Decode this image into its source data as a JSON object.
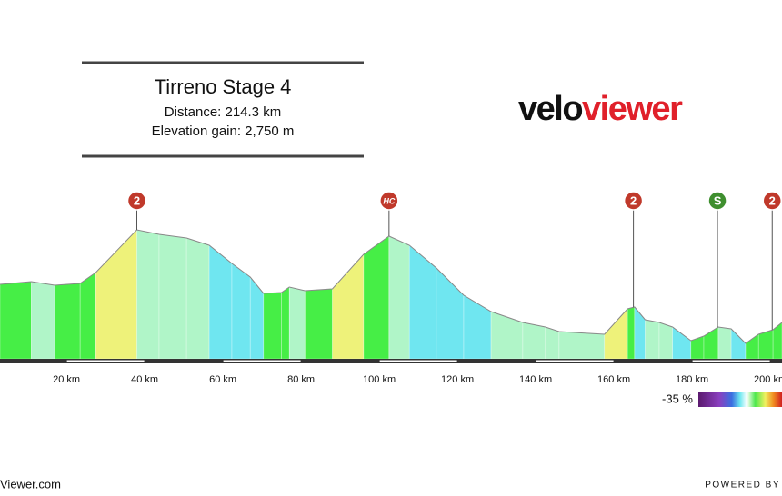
{
  "chart_data": {
    "type": "area",
    "title": "Tirreno Stage 4",
    "subtitle": [
      "Distance: 214.3 km",
      "Elevation gain: 2,750 m"
    ],
    "logo": [
      "velo",
      "viewer"
    ],
    "x": [
      3,
      11,
      17,
      23.5,
      27.5,
      38,
      43.7,
      50.7,
      56.5,
      62.3,
      67,
      70.4,
      75,
      77,
      81,
      88,
      96,
      102.5,
      107.7,
      114.6,
      121.6,
      128.6,
      136.7,
      142.5,
      146,
      157.6,
      163.5,
      165.3,
      168,
      171.6,
      175,
      179.7,
      183,
      186.7,
      190,
      193.7,
      197,
      200.7,
      203
    ],
    "series": [
      {
        "name": "Elevation",
        "values": [
          656,
          680,
          648,
          664,
          760,
          1136,
          1096,
          1064,
          1000,
          840,
          720,
          576,
          584,
          632,
          600,
          616,
          920,
          1080,
          1000,
          800,
          560,
          416,
          320,
          280,
          240,
          216,
          440,
          456,
          344,
          320,
          280,
          160,
          200,
          280,
          264,
          136,
          216,
          256,
          320
        ]
      }
    ],
    "xlim": [
      3,
      203
    ],
    "xticks": [
      {
        "value": 20,
        "label": "20 km"
      },
      {
        "value": 40,
        "label": "40 km"
      },
      {
        "value": 60,
        "label": "60 km"
      },
      {
        "value": 80,
        "label": "80 km"
      },
      {
        "value": 100,
        "label": "100 km"
      },
      {
        "value": 120,
        "label": "120 km"
      },
      {
        "value": 140,
        "label": "140 km"
      },
      {
        "value": 160,
        "label": "160 km"
      },
      {
        "value": 180,
        "label": "180 km"
      },
      {
        "value": 200,
        "label": "200 km"
      }
    ],
    "annotations": [
      {
        "x": 38,
        "label": "2",
        "color": "#c0392b"
      },
      {
        "x": 102.5,
        "label": "HC",
        "color": "#c0392b"
      },
      {
        "x": 165,
        "label": "2",
        "color": "#c0392b"
      },
      {
        "x": 186.5,
        "label": "S",
        "color": "#3f8f2f"
      },
      {
        "x": 200.5,
        "label": "2",
        "color": "#c0392b"
      }
    ],
    "legend_label": "-35 %",
    "footer": [
      "Viewer.com",
      "POWERED BY"
    ]
  }
}
